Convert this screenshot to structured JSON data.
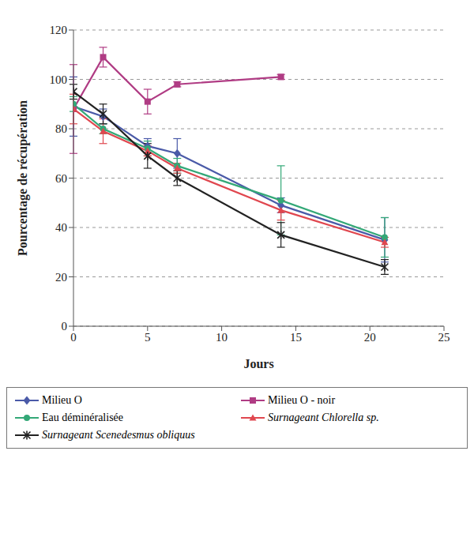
{
  "chart_data": {
    "type": "line",
    "x_label": "Jours",
    "y_label": "Pourcentage de récupération",
    "x": [
      0,
      2,
      5,
      7,
      14,
      21
    ],
    "xlim": [
      0,
      25
    ],
    "xticks": [
      0,
      5,
      10,
      15,
      20,
      25
    ],
    "ylim": [
      0,
      120
    ],
    "yticks": [
      0,
      20,
      40,
      60,
      80,
      100,
      120
    ],
    "grid": true,
    "legend": "bottom",
    "series": [
      {
        "name": "Milieu O",
        "color": "#4a5aa8",
        "marker": "diamond",
        "values": [
          89,
          85,
          73,
          70,
          49,
          35
        ],
        "errors": [
          12,
          3,
          3,
          6,
          3,
          9
        ]
      },
      {
        "name": "Milieu O - noir",
        "color": "#b03c84",
        "marker": "square",
        "values": [
          88,
          109,
          91,
          98,
          101,
          null
        ],
        "errors": [
          18,
          4,
          5,
          1,
          1,
          null
        ]
      },
      {
        "name": "Eau déminéralisée",
        "color": "#33a877",
        "marker": "circle",
        "values": [
          90,
          80,
          72,
          65,
          51,
          36
        ],
        "errors": [
          3,
          2,
          3,
          3,
          14,
          8
        ]
      },
      {
        "name": "Surnageant Chlorella sp.",
        "color": "#e0474f",
        "marker": "triangle",
        "values": [
          88,
          79,
          71,
          64,
          47,
          34
        ],
        "errors": [
          6,
          5,
          2,
          2,
          4,
          2
        ]
      },
      {
        "name": "Surnageant Scenedesmus obliquus",
        "color": "#222222",
        "marker": "star",
        "values": [
          95,
          86,
          69,
          60,
          37,
          24
        ],
        "errors": [
          3,
          4,
          5,
          3,
          5,
          3
        ]
      }
    ]
  }
}
